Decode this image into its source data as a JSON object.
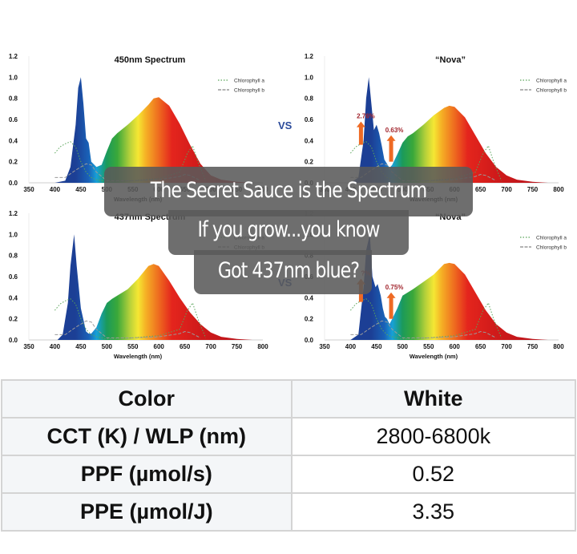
{
  "chart_data": [
    {
      "type": "area",
      "title": "450nm Spectrum",
      "xlabel": "Wavelength (nm)",
      "ylabel": "",
      "xlim": [
        350,
        800
      ],
      "ylim": [
        0,
        1.2
      ],
      "xticks": [
        350,
        400,
        450,
        500,
        550,
        600,
        650,
        700,
        750,
        800
      ],
      "yticks": [
        "0.0",
        "0.2",
        "0.4",
        "0.6",
        "0.8",
        "1.0",
        "1.2"
      ],
      "legend": [
        "Chlorophyll a",
        "Chlorophyll b"
      ],
      "series": [
        {
          "name": "LED spectrum",
          "x": [
            400,
            420,
            430,
            440,
            445,
            450,
            455,
            460,
            465,
            470,
            480,
            490,
            500,
            510,
            520,
            540,
            560,
            580,
            590,
            600,
            620,
            640,
            660,
            680,
            700,
            720,
            750,
            780
          ],
          "values": [
            0,
            0.02,
            0.15,
            0.55,
            0.9,
            1.0,
            0.75,
            0.42,
            0.38,
            0.2,
            0.15,
            0.17,
            0.3,
            0.42,
            0.47,
            0.55,
            0.64,
            0.74,
            0.8,
            0.81,
            0.73,
            0.56,
            0.36,
            0.18,
            0.07,
            0.03,
            0.01,
            0
          ]
        },
        {
          "name": "Chlorophyll a",
          "x": [
            400,
            410,
            420,
            430,
            440,
            450,
            460,
            470,
            480,
            500,
            550,
            600,
            640,
            655,
            665,
            675,
            690
          ],
          "values": [
            0.28,
            0.34,
            0.37,
            0.39,
            0.34,
            0.2,
            0.1,
            0.05,
            0.03,
            0.01,
            0.02,
            0.04,
            0.1,
            0.28,
            0.35,
            0.2,
            0.02
          ]
        },
        {
          "name": "Chlorophyll b",
          "x": [
            400,
            420,
            440,
            460,
            470,
            480,
            500,
            550,
            600,
            640,
            650,
            660,
            680
          ],
          "values": [
            0.05,
            0.05,
            0.12,
            0.18,
            0.17,
            0.1,
            0.02,
            0.02,
            0.03,
            0.06,
            0.08,
            0.07,
            0.02
          ]
        }
      ]
    },
    {
      "type": "area",
      "title": "“Nova”",
      "xlabel": "Wavelength (nm)",
      "xlim": [
        350,
        800
      ],
      "ylim": [
        0,
        1.2
      ],
      "xticks": [
        350,
        400,
        450,
        500,
        550,
        600,
        650,
        700,
        750,
        800
      ],
      "yticks": [
        "0.0",
        "0.2",
        "0.4",
        "0.6",
        "0.8",
        "1.0",
        "1.2"
      ],
      "legend": [
        "Chlorophyll a",
        "Chlorophyll b"
      ],
      "annotations": [
        {
          "text": "2.76%",
          "x": 420
        },
        {
          "text": "0.63%",
          "x": 478
        }
      ],
      "series": [
        {
          "name": "LED spectrum",
          "x": [
            400,
            415,
            425,
            430,
            435,
            440,
            445,
            450,
            455,
            460,
            465,
            470,
            475,
            480,
            490,
            500,
            510,
            520,
            540,
            560,
            580,
            590,
            600,
            620,
            640,
            660,
            680,
            700,
            720,
            750,
            780
          ],
          "values": [
            0,
            0.05,
            0.4,
            0.8,
            1.0,
            0.75,
            0.5,
            0.55,
            0.47,
            0.35,
            0.22,
            0.18,
            0.14,
            0.17,
            0.27,
            0.38,
            0.44,
            0.47,
            0.55,
            0.64,
            0.71,
            0.73,
            0.72,
            0.62,
            0.45,
            0.28,
            0.15,
            0.07,
            0.03,
            0.01,
            0
          ]
        },
        {
          "name": "Chlorophyll a",
          "x": [
            400,
            410,
            420,
            430,
            440,
            450,
            460,
            470,
            480,
            500,
            550,
            600,
            640,
            655,
            665,
            675,
            690
          ],
          "values": [
            0.28,
            0.34,
            0.37,
            0.39,
            0.34,
            0.2,
            0.1,
            0.05,
            0.03,
            0.01,
            0.02,
            0.04,
            0.1,
            0.28,
            0.35,
            0.2,
            0.02
          ]
        },
        {
          "name": "Chlorophyll b",
          "x": [
            400,
            420,
            440,
            460,
            470,
            480,
            500,
            550,
            600,
            640,
            650,
            660,
            680
          ],
          "values": [
            0.05,
            0.05,
            0.12,
            0.18,
            0.17,
            0.1,
            0.02,
            0.02,
            0.03,
            0.06,
            0.08,
            0.07,
            0.02
          ]
        }
      ]
    },
    {
      "type": "area",
      "title": "437nm Spectrum",
      "xlabel": "Wavelength (nm)",
      "xlim": [
        350,
        800
      ],
      "ylim": [
        0,
        1.2
      ],
      "xticks": [
        350,
        400,
        450,
        500,
        550,
        600,
        650,
        700,
        750,
        800
      ],
      "yticks": [
        "0.0",
        "0.2",
        "0.4",
        "0.6",
        "0.8",
        "1.0",
        "1.2"
      ],
      "legend": [
        "Chlorophyll a",
        "Chlorophyll b"
      ],
      "series": [
        {
          "name": "LED spectrum",
          "x": [
            405,
            415,
            425,
            430,
            437,
            442,
            450,
            460,
            465,
            470,
            480,
            490,
            500,
            510,
            520,
            540,
            560,
            580,
            590,
            600,
            620,
            640,
            660,
            680,
            700,
            720,
            750,
            780
          ],
          "values": [
            0,
            0.05,
            0.35,
            0.7,
            1.0,
            0.7,
            0.3,
            0.08,
            0.06,
            0.06,
            0.12,
            0.25,
            0.35,
            0.39,
            0.42,
            0.48,
            0.58,
            0.7,
            0.72,
            0.7,
            0.56,
            0.4,
            0.26,
            0.15,
            0.07,
            0.03,
            0.01,
            0
          ]
        },
        {
          "name": "Chlorophyll a",
          "x": [
            400,
            410,
            420,
            430,
            440,
            450,
            460,
            470,
            480,
            500,
            550,
            600,
            640,
            655,
            665,
            675,
            690
          ],
          "values": [
            0.28,
            0.34,
            0.37,
            0.39,
            0.34,
            0.2,
            0.1,
            0.05,
            0.03,
            0.01,
            0.02,
            0.04,
            0.1,
            0.28,
            0.35,
            0.2,
            0.02
          ]
        },
        {
          "name": "Chlorophyll b",
          "x": [
            400,
            420,
            440,
            460,
            470,
            480,
            500,
            550,
            600,
            640,
            650,
            660,
            680
          ],
          "values": [
            0.05,
            0.05,
            0.12,
            0.18,
            0.17,
            0.1,
            0.02,
            0.02,
            0.03,
            0.06,
            0.08,
            0.07,
            0.02
          ]
        }
      ]
    },
    {
      "type": "area",
      "title": "“Nova”",
      "xlabel": "Wavelength (nm)",
      "xlim": [
        350,
        800
      ],
      "ylim": [
        0,
        1.2
      ],
      "xticks": [
        350,
        400,
        450,
        500,
        550,
        600,
        650,
        700,
        750,
        800
      ],
      "yticks": [
        "0.0",
        "0.2",
        "0.4",
        "0.6",
        "0.8",
        "1.0",
        "1.2"
      ],
      "legend": [
        "Chlorophyll a",
        "Chlorophyll b"
      ],
      "annotations": [
        {
          "text": "?%",
          "x": 420
        },
        {
          "text": "0.75%",
          "x": 478
        }
      ],
      "series": [
        {
          "name": "LED spectrum",
          "x": [
            400,
            415,
            425,
            430,
            437,
            442,
            448,
            452,
            458,
            462,
            466,
            470,
            475,
            480,
            490,
            500,
            510,
            520,
            540,
            560,
            580,
            590,
            600,
            620,
            640,
            660,
            680,
            700,
            720,
            750,
            780
          ],
          "values": [
            0,
            0.05,
            0.5,
            0.85,
            1.0,
            0.6,
            0.5,
            0.53,
            0.42,
            0.3,
            0.22,
            0.2,
            0.15,
            0.2,
            0.3,
            0.42,
            0.45,
            0.48,
            0.55,
            0.62,
            0.72,
            0.73,
            0.72,
            0.62,
            0.45,
            0.28,
            0.15,
            0.07,
            0.03,
            0.01,
            0
          ]
        },
        {
          "name": "Chlorophyll a",
          "x": [
            400,
            410,
            420,
            430,
            440,
            450,
            460,
            470,
            480,
            500,
            550,
            600,
            640,
            655,
            665,
            675,
            690
          ],
          "values": [
            0.28,
            0.34,
            0.37,
            0.39,
            0.34,
            0.2,
            0.1,
            0.05,
            0.03,
            0.01,
            0.02,
            0.04,
            0.1,
            0.28,
            0.35,
            0.2,
            0.02
          ]
        },
        {
          "name": "Chlorophyll b",
          "x": [
            400,
            420,
            440,
            460,
            470,
            480,
            500,
            550,
            600,
            640,
            650,
            660,
            680
          ],
          "values": [
            0.05,
            0.05,
            0.12,
            0.18,
            0.17,
            0.1,
            0.02,
            0.02,
            0.03,
            0.06,
            0.08,
            0.07,
            0.02
          ]
        }
      ]
    }
  ],
  "vs_label": "VS",
  "overlay": {
    "lines": [
      "The Secret Sauce is the Spectrum",
      "If you grow...you know",
      "Got 437nm blue?"
    ]
  },
  "table": {
    "rows": [
      {
        "label": "Color",
        "value": "White"
      },
      {
        "label": "CCT (K) / WLP (nm)",
        "value": "2800-6800k"
      },
      {
        "label": "PPF (µmol/s)",
        "value": "0.52"
      },
      {
        "label": "PPE (µmol/J)",
        "value": "3.35"
      }
    ]
  },
  "colors": {
    "spectrum_blue": "#1c3f95",
    "annotation_red": "#a2262e",
    "arrow_orange": "#ee6a24",
    "chl_a": "#5aa55a",
    "chl_b": "#9a9a9a",
    "vs_blue": "#2a4a9a",
    "overlay_bg": "#5a5a5a",
    "table_border": "#d4d4d4",
    "table_header_bg": "#f4f6f8"
  }
}
